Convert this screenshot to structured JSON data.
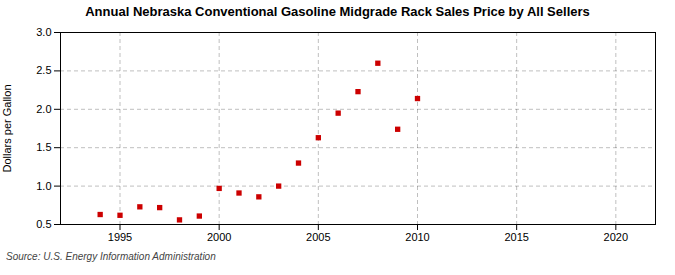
{
  "chart_data": {
    "type": "scatter",
    "title": "Annual Nebraska Conventional Gasoline Midgrade Rack Sales Price by All Sellers",
    "ylabel": "Dollars per Gallon",
    "source": "Source: U.S. Energy Information Administration",
    "x": [
      1994,
      1995,
      1996,
      1997,
      1998,
      1999,
      2000,
      2001,
      2002,
      2003,
      2004,
      2005,
      2006,
      2007,
      2008,
      2009,
      2010
    ],
    "values": [
      0.63,
      0.62,
      0.73,
      0.72,
      0.56,
      0.61,
      0.97,
      0.91,
      0.86,
      1.0,
      1.3,
      1.63,
      1.95,
      2.23,
      2.6,
      1.74,
      2.14
    ],
    "color": "#cc0000",
    "marker": "square",
    "xlim": [
      1992,
      2022
    ],
    "xticks": [
      1995,
      2000,
      2005,
      2010,
      2015,
      2020
    ],
    "ylim": [
      0.5,
      3.0
    ],
    "yticks": [
      0.5,
      {
        "value": 1.0,
        "label": "1.0"
      },
      1.5,
      {
        "value": 2.0,
        "label": "2.0"
      },
      2.5,
      {
        "value": 3.0,
        "label": "3.0"
      }
    ],
    "grid": true
  }
}
